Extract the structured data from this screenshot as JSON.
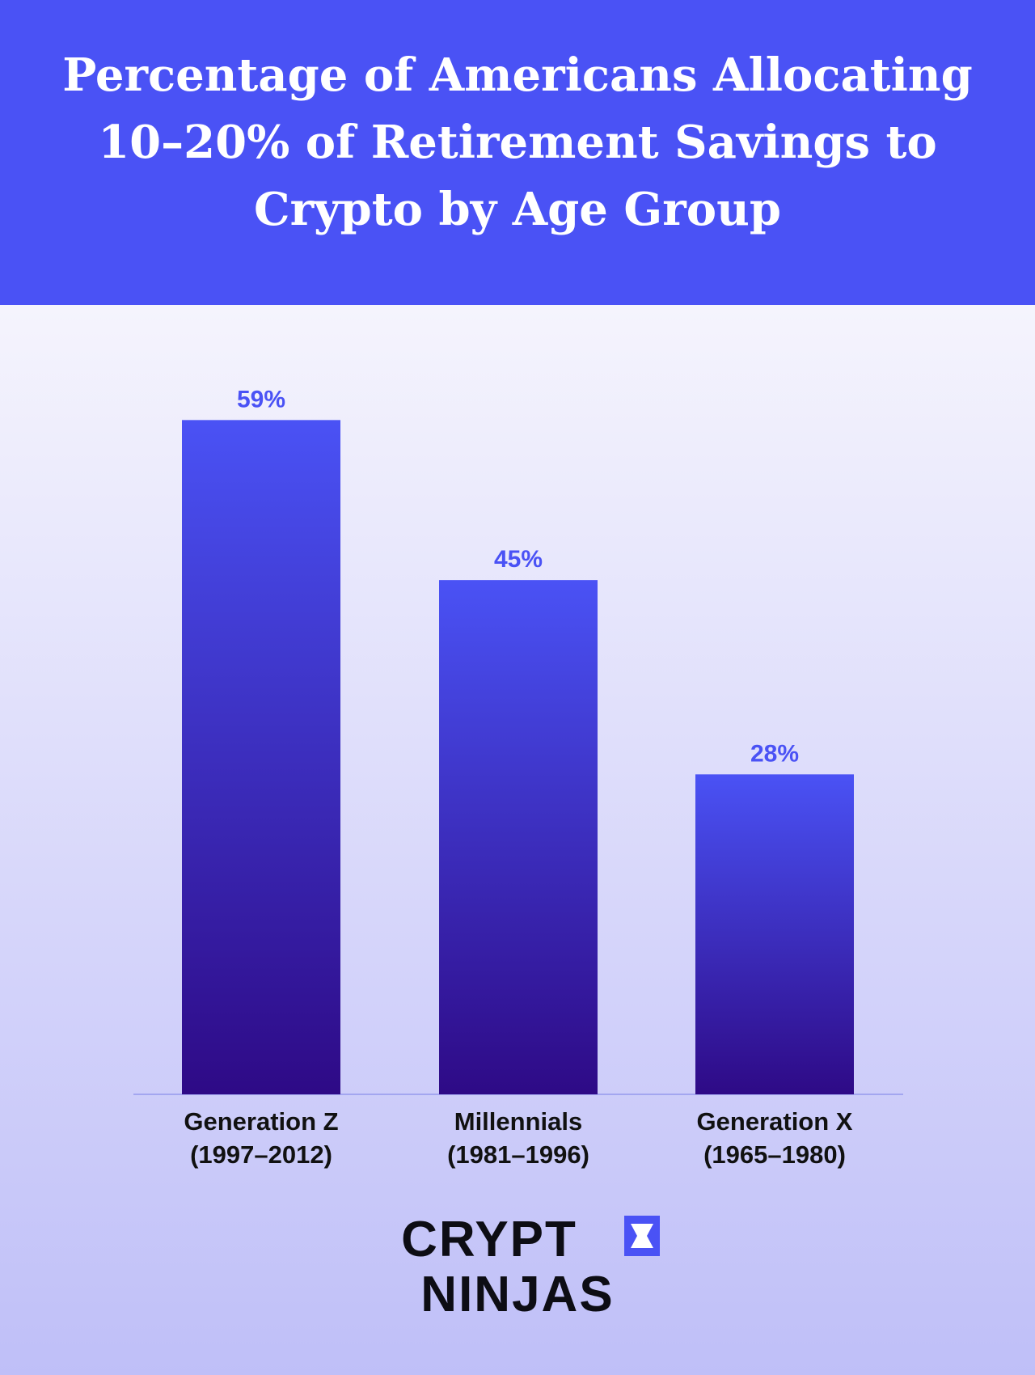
{
  "chart_data": {
    "type": "bar",
    "title": "Percentage of Americans Allocating 10–20% of Retirement Savings to Crypto by Age Group",
    "categories": [
      "Generation Z\n(1997–2012)",
      "Millennials\n(1981–1996)",
      "Generation X\n(1965–1980)"
    ],
    "values": [
      59,
      45,
      28
    ],
    "value_labels": [
      "59%",
      "45%",
      "28%"
    ],
    "color": "#4a52f5"
  },
  "logo": {
    "lines": [
      "CRYPT",
      "NINJAS"
    ]
  }
}
